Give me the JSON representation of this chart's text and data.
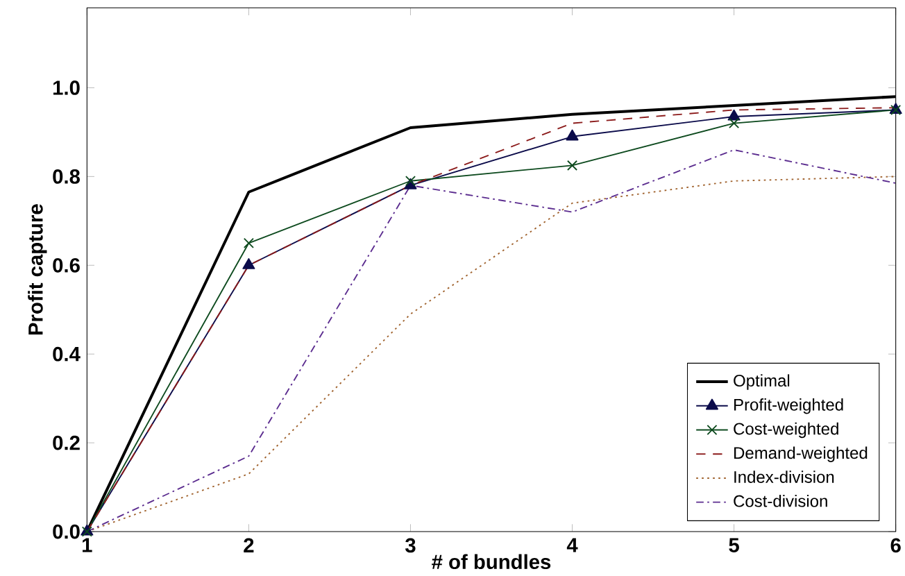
{
  "chart_data": {
    "type": "line",
    "xlabel": "# of bundles",
    "ylabel": "Profit capture",
    "x": [
      1,
      2,
      3,
      4,
      5,
      6
    ],
    "xlim": [
      1,
      6
    ],
    "xticks": [
      1,
      2,
      3,
      4,
      5,
      6
    ],
    "ylim": [
      0,
      1.18
    ],
    "yticks": [
      {
        "value": 0,
        "label": "0.0"
      },
      0.2,
      0.4,
      0.6,
      0.8,
      {
        "value": 1,
        "label": "1.0"
      }
    ],
    "grid": false,
    "legend": "bottom right",
    "series": [
      {
        "name": "Optimal",
        "color": "#000000",
        "line_style": "solid",
        "marker": "none",
        "values": [
          0,
          0.765,
          0.91,
          0.94,
          0.96,
          0.98
        ]
      },
      {
        "name": "Profit-weighted",
        "color": "#0b0b4a",
        "line_style": "solid",
        "marker": "triangle",
        "values": [
          0,
          0.6,
          0.78,
          0.89,
          0.935,
          0.95
        ]
      },
      {
        "name": "Cost-weighted",
        "color": "#0d4a1e",
        "line_style": "solid",
        "marker": "cross",
        "values": [
          0,
          0.65,
          0.79,
          0.825,
          0.92,
          0.95
        ]
      },
      {
        "name": "Demand-weighted",
        "color": "#8b1a1a",
        "line_style": "dashed",
        "marker": "none",
        "values": [
          0,
          0.6,
          0.78,
          0.92,
          0.95,
          0.955
        ]
      },
      {
        "name": "Index-division",
        "color": "#a0622d",
        "line_style": "dotted",
        "marker": "none",
        "values": [
          0,
          0.13,
          0.49,
          0.74,
          0.79,
          0.8
        ]
      },
      {
        "name": "Cost-division",
        "color": "#5b2c8f",
        "line_style": "dashdot",
        "marker": "none",
        "values": [
          0,
          0.17,
          0.78,
          0.72,
          0.86,
          0.785
        ]
      }
    ]
  }
}
